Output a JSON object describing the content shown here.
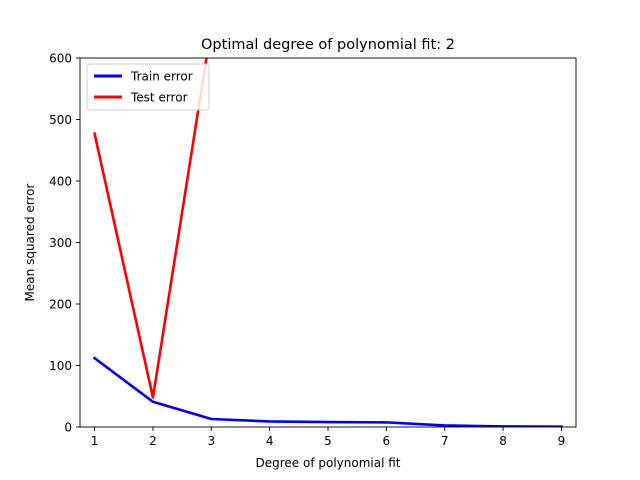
{
  "chart_data": {
    "type": "line",
    "title": "Optimal degree of polynomial fit: 2",
    "xlabel": "Degree of polynomial fit",
    "ylabel": "Mean squared error",
    "xlim": [
      0.75,
      9.25
    ],
    "ylim": [
      0,
      600
    ],
    "xticks": [
      1,
      2,
      3,
      4,
      5,
      6,
      7,
      8,
      9
    ],
    "yticks": [
      0,
      100,
      200,
      300,
      400,
      500,
      600
    ],
    "x": [
      1,
      2,
      3,
      4,
      5,
      6,
      7,
      8,
      9
    ],
    "grid": false,
    "legend_position": "top-left",
    "series": [
      {
        "name": "Train error",
        "color": "#0000ff",
        "values": [
          112,
          41,
          13,
          9,
          8,
          7.5,
          2.5,
          1,
          0.5
        ]
      },
      {
        "name": "Test error",
        "color": "#ff0000",
        "values": [
          477,
          48,
          650,
          null,
          null,
          null,
          null,
          null,
          null
        ]
      }
    ]
  }
}
